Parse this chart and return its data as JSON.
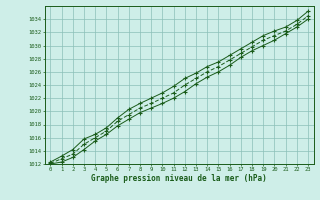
{
  "hours": [
    0,
    1,
    2,
    3,
    4,
    5,
    6,
    7,
    8,
    9,
    10,
    11,
    12,
    13,
    14,
    15,
    16,
    17,
    18,
    19,
    20,
    21,
    22,
    23
  ],
  "line_upper": [
    1012.3,
    1013.2,
    1014.2,
    1015.8,
    1016.5,
    1017.5,
    1019.0,
    1020.3,
    1021.2,
    1022.0,
    1022.8,
    1023.8,
    1025.0,
    1025.8,
    1026.8,
    1027.5,
    1028.5,
    1029.5,
    1030.5,
    1031.5,
    1032.2,
    1032.8,
    1033.8,
    1035.2
  ],
  "line_lower": [
    1012.0,
    1012.3,
    1013.0,
    1014.2,
    1015.5,
    1016.5,
    1017.8,
    1018.8,
    1019.8,
    1020.5,
    1021.2,
    1022.0,
    1023.0,
    1024.2,
    1025.2,
    1026.0,
    1027.0,
    1028.2,
    1029.2,
    1030.0,
    1030.8,
    1031.8,
    1032.8,
    1034.0
  ],
  "line_mid": [
    1012.1,
    1012.8,
    1013.5,
    1015.0,
    1016.0,
    1017.0,
    1018.5,
    1019.5,
    1020.5,
    1021.2,
    1022.0,
    1022.8,
    1024.0,
    1025.0,
    1026.0,
    1026.8,
    1027.8,
    1028.8,
    1029.8,
    1030.8,
    1031.5,
    1032.2,
    1033.2,
    1034.5
  ],
  "ylim": [
    1012,
    1036
  ],
  "yticks": [
    1012,
    1014,
    1016,
    1018,
    1020,
    1022,
    1024,
    1026,
    1028,
    1030,
    1032,
    1034
  ],
  "line_color": "#1a5c1a",
  "bg_color": "#ceeee8",
  "grid_color": "#8bbfb8",
  "xlabel": "Graphe pression niveau de la mer (hPa)"
}
